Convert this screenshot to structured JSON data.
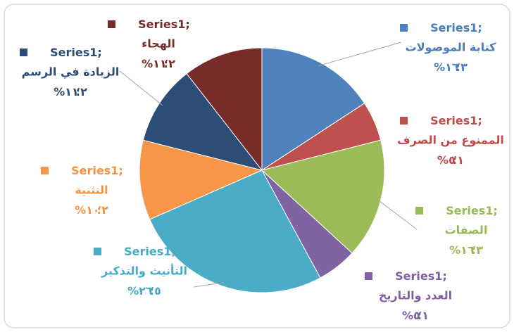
{
  "chart_data": {
    "type": "pie",
    "series_name": "Series1",
    "series_separator": ";",
    "label_separator": "؛",
    "categories": [
      "كتابة الموصولات",
      "الممنوع من الصرف",
      "الصفات",
      "العدد والتاريخ",
      "التأنيث والتذكير",
      "التثنية",
      "الزيادة في الرسم",
      "الهجاء"
    ],
    "values": [
      3,
      1,
      3,
      1,
      5,
      2,
      2,
      2
    ],
    "value_labels": [
      "٣",
      "١",
      "٣",
      "١",
      "٥",
      "٢",
      "٢",
      "٢"
    ],
    "percents": [
      16,
      5,
      16,
      5,
      26,
      10,
      11,
      11
    ],
    "percent_labels": [
      "١٦%",
      "٥%",
      "١٦%",
      "٥%",
      "٢٦%",
      "١٠%",
      "١١%",
      "١١%"
    ],
    "colors": [
      "#4f81bd",
      "#c0504d",
      "#9bbb59",
      "#8064a2",
      "#4bacc6",
      "#f79646",
      "#2c4d75",
      "#772c2a"
    ]
  }
}
